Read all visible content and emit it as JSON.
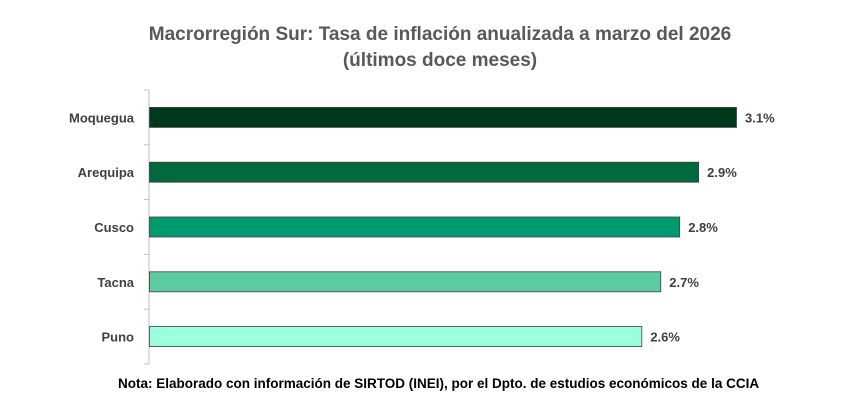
{
  "chart_data": {
    "type": "bar",
    "orientation": "horizontal",
    "title": "Macrorregión Sur: Tasa de inflación anualizada a marzo del 2026",
    "subtitle": "(últimos doce meses)",
    "categories": [
      "Moquegua",
      "Arequipa",
      "Cusco",
      "Tacna",
      "Puno"
    ],
    "values": [
      3.1,
      2.9,
      2.8,
      2.7,
      2.6
    ],
    "value_labels": [
      "3.1%",
      "2.9%",
      "2.8%",
      "2.7%",
      "2.6%"
    ],
    "colors": [
      "#00391c",
      "#00693e",
      "#009a6e",
      "#5ccba0",
      "#99ffdc"
    ],
    "xlabel": "",
    "ylabel": "",
    "xlim": [
      0,
      3.1
    ],
    "grid": false,
    "legend": "none"
  },
  "footer": {
    "note": "Nota: Elaborado con información de SIRTOD (INEI), por el Dpto. de estudios económicos de la CCIA"
  }
}
